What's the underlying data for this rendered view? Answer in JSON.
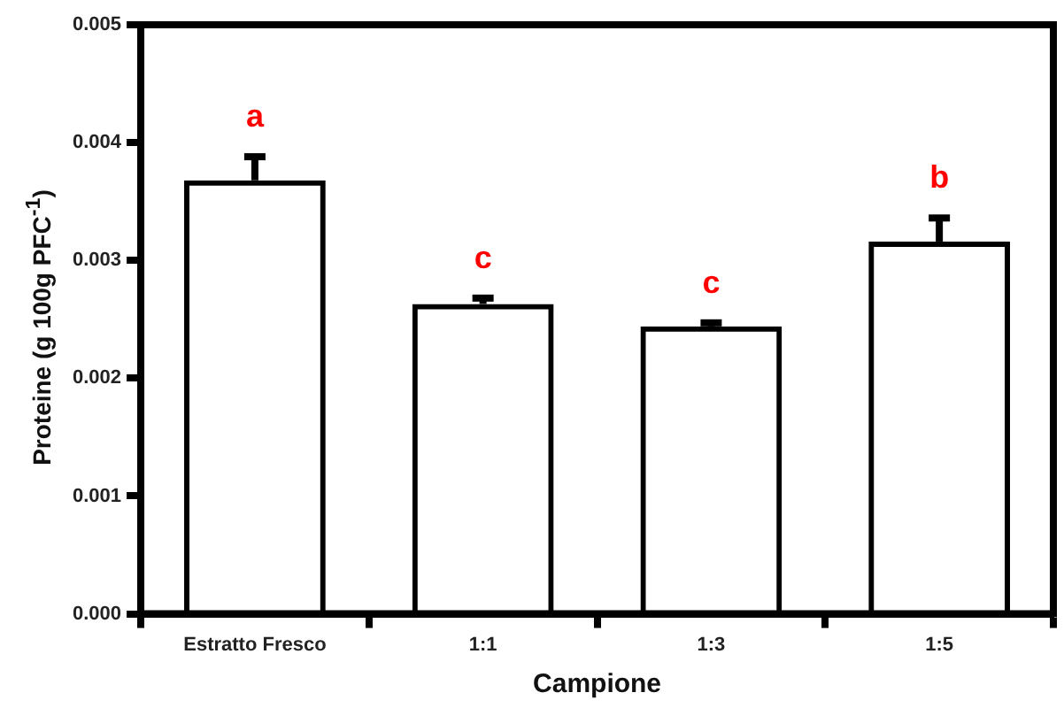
{
  "chart_data": {
    "type": "bar",
    "xlabel": "Campione",
    "ylabel": "Proteine (g 100g PFC$^{-1}$)",
    "categories": [
      "Estratto Fresco",
      "1:1",
      "1:3",
      "1:5"
    ],
    "values": [
      0.00368,
      0.00263,
      0.00244,
      0.00316
    ],
    "errors": [
      0.0002,
      5e-05,
      3e-05,
      0.0002
    ],
    "color": "#000000",
    "ylim": [
      0,
      0.005
    ],
    "yticks": [
      {
        "value": 0,
        "label": "0.000"
      },
      {
        "value": 0.001,
        "label": "0.001"
      },
      {
        "value": 0.002,
        "label": "0.002"
      },
      {
        "value": 0.003,
        "label": "0.003"
      },
      {
        "value": 0.004,
        "label": "0.004"
      },
      {
        "value": 0.005,
        "label": "0.005"
      }
    ],
    "annotations": [
      "a",
      "c",
      "c",
      "b"
    ],
    "grid": false,
    "legend": false
  }
}
